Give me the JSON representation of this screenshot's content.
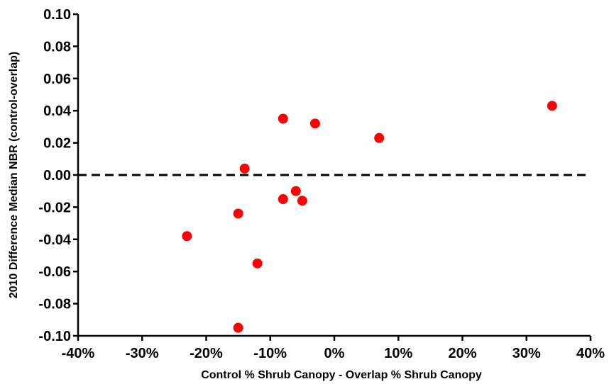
{
  "chart_data": {
    "type": "scatter",
    "title": "",
    "xlabel": "Control % Shrub Canopy - Overlap % Shrub Canopy",
    "ylabel": "2010 Difference Median NBR (control-overlap)",
    "xlim": [
      -40,
      40
    ],
    "ylim": [
      -0.1,
      0.1
    ],
    "x_ticks": [
      -40,
      -30,
      -20,
      -10,
      0,
      10,
      20,
      30,
      40
    ],
    "x_tick_labels": [
      "-40%",
      "-30%",
      "-20%",
      "-10%",
      "0%",
      "10%",
      "20%",
      "30%",
      "40%"
    ],
    "y_ticks": [
      -0.1,
      -0.08,
      -0.06,
      -0.04,
      -0.02,
      0.0,
      0.02,
      0.04,
      0.06,
      0.08,
      0.1
    ],
    "y_tick_labels": [
      "-0.10",
      "-0.08",
      "-0.06",
      "-0.04",
      "-0.02",
      "0.00",
      "0.02",
      "0.04",
      "0.06",
      "0.08",
      "0.10"
    ],
    "reference_line": {
      "y": 0.0,
      "style": "dashed",
      "color": "#000000"
    },
    "grid": false,
    "marker_color": "#ff0000",
    "points": [
      {
        "x": -23,
        "y": -0.038
      },
      {
        "x": -15,
        "y": -0.024
      },
      {
        "x": -15,
        "y": -0.095
      },
      {
        "x": -14,
        "y": 0.004
      },
      {
        "x": -12,
        "y": -0.055
      },
      {
        "x": -8,
        "y": 0.035
      },
      {
        "x": -8,
        "y": -0.015
      },
      {
        "x": -6,
        "y": -0.01
      },
      {
        "x": -5,
        "y": -0.016
      },
      {
        "x": -3,
        "y": 0.032
      },
      {
        "x": 7,
        "y": 0.023
      },
      {
        "x": 34,
        "y": 0.043
      }
    ]
  }
}
